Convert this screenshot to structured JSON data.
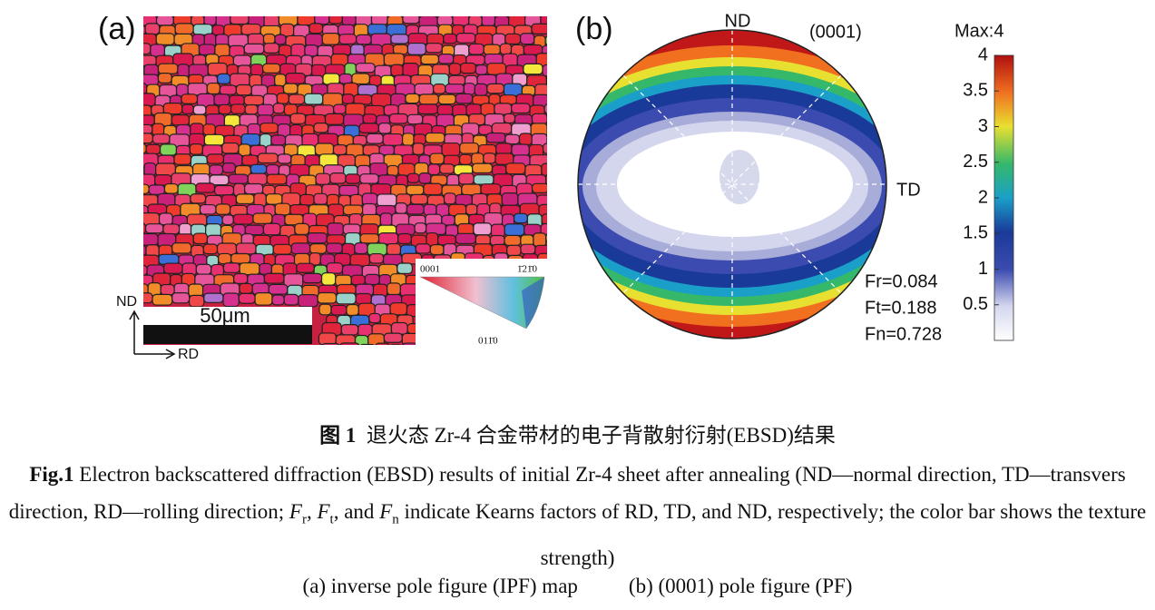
{
  "panel_a": {
    "label": "(a)",
    "scale_bar": "50μm",
    "nd": "ND",
    "rd": "RD",
    "key": {
      "top_left": "0001",
      "top_right": "1̄21̄0",
      "bottom": "011̄0"
    }
  },
  "panel_b": {
    "label": "(b)",
    "nd": "ND",
    "plane": "(0001)",
    "td": "TD",
    "factors": [
      "Fr=0.084",
      "Ft=0.188",
      "Fn=0.728"
    ],
    "colorbar": {
      "title": "Max:4",
      "lim": [
        0,
        4
      ],
      "ticks": [
        4,
        3.5,
        3,
        2.5,
        2,
        1.5,
        1,
        0.5
      ]
    }
  },
  "caption": {
    "cn_label": "图 1",
    "cn_text": "退火态 Zr-4 合金带材的电子背散射衍射(EBSD)结果",
    "en_label": "Fig.1",
    "en_parts": [
      {
        "text": "Electron backscattered diffraction (EBSD) results of initial Zr-4 sheet after annealing (ND—normal direction, TD—transvers direction, RD—rolling direction; "
      },
      {
        "text": "F",
        "style": "italic"
      },
      {
        "text": "r",
        "style": "sub"
      },
      {
        "text": ", "
      },
      {
        "text": "F",
        "style": "italic"
      },
      {
        "text": "t",
        "style": "sub"
      },
      {
        "text": ", and "
      },
      {
        "text": "F",
        "style": "italic"
      },
      {
        "text": "n",
        "style": "sub"
      },
      {
        "text": " indicate Kearns factors of RD, TD, and ND, respectively; the color bar shows the texture strength)"
      }
    ],
    "sub_a": "(a) inverse pole figure (IPF) map",
    "sub_b": "(b) (0001) pole figure (PF)"
  }
}
